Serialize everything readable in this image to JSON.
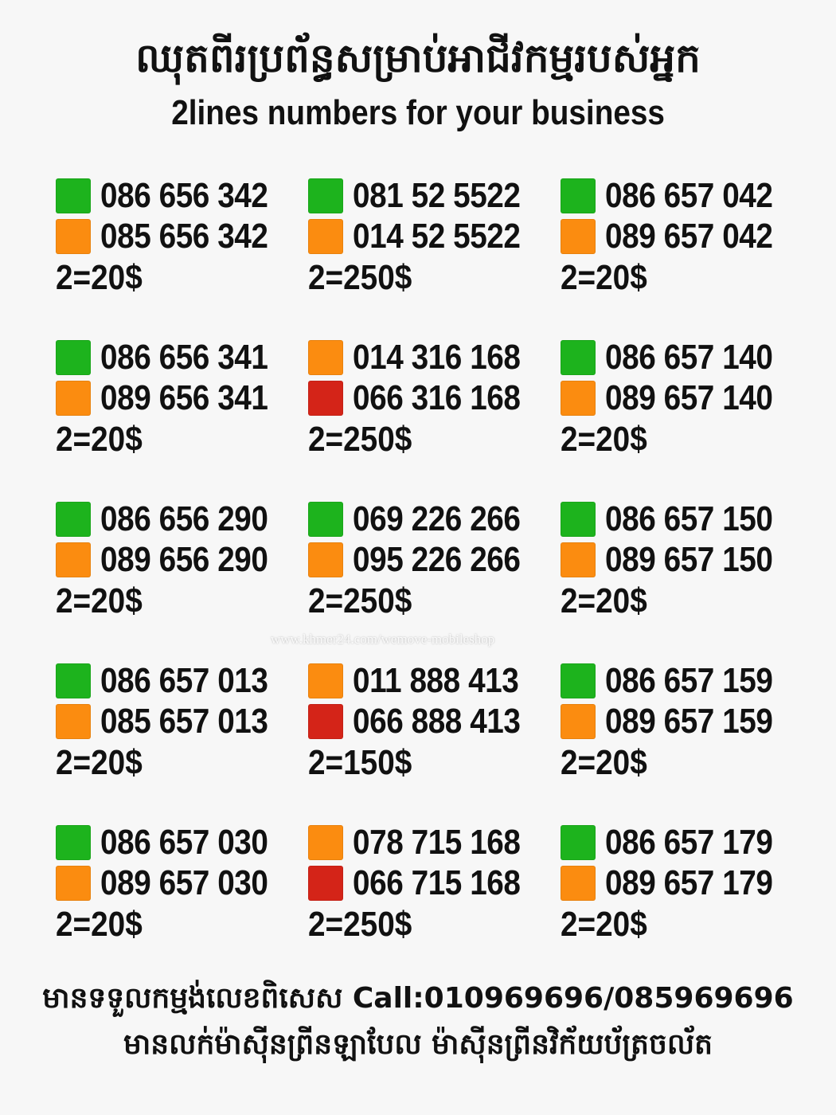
{
  "header": {
    "title_km": "ឈុតពីរប្រព័ន្ធសម្រាប់អាជីវកម្មរបស់អ្នក",
    "title_en": "2lines numbers for your business"
  },
  "colors": {
    "green": "#1db31d",
    "orange": "#fb8c10",
    "red": "#d42418"
  },
  "offers": [
    {
      "lines": [
        {
          "color": "green",
          "number": "086 656 342"
        },
        {
          "color": "orange",
          "number": "085 656 342"
        }
      ],
      "price": "2=20$"
    },
    {
      "lines": [
        {
          "color": "green",
          "number": "081 52 5522"
        },
        {
          "color": "orange",
          "number": "014 52 5522"
        }
      ],
      "price": "2=250$"
    },
    {
      "lines": [
        {
          "color": "green",
          "number": "086 657 042"
        },
        {
          "color": "orange",
          "number": "089 657 042"
        }
      ],
      "price": "2=20$"
    },
    {
      "lines": [
        {
          "color": "green",
          "number": "086 656 341"
        },
        {
          "color": "orange",
          "number": "089 656 341"
        }
      ],
      "price": "2=20$"
    },
    {
      "lines": [
        {
          "color": "orange",
          "number": "014 316 168"
        },
        {
          "color": "red",
          "number": "066 316 168"
        }
      ],
      "price": "2=250$"
    },
    {
      "lines": [
        {
          "color": "green",
          "number": "086 657 140"
        },
        {
          "color": "orange",
          "number": "089 657 140"
        }
      ],
      "price": "2=20$"
    },
    {
      "lines": [
        {
          "color": "green",
          "number": "086 656 290"
        },
        {
          "color": "orange",
          "number": "089 656 290"
        }
      ],
      "price": "2=20$"
    },
    {
      "lines": [
        {
          "color": "green",
          "number": "069 226 266"
        },
        {
          "color": "orange",
          "number": "095 226 266"
        }
      ],
      "price": "2=250$"
    },
    {
      "lines": [
        {
          "color": "green",
          "number": "086 657 150"
        },
        {
          "color": "orange",
          "number": "089 657 150"
        }
      ],
      "price": "2=20$"
    },
    {
      "lines": [
        {
          "color": "green",
          "number": "086 657 013"
        },
        {
          "color": "orange",
          "number": "085 657 013"
        }
      ],
      "price": "2=20$"
    },
    {
      "lines": [
        {
          "color": "orange",
          "number": "011 888 413"
        },
        {
          "color": "red",
          "number": "066 888 413"
        }
      ],
      "price": "2=150$"
    },
    {
      "lines": [
        {
          "color": "green",
          "number": "086 657 159"
        },
        {
          "color": "orange",
          "number": "089 657 159"
        }
      ],
      "price": "2=20$"
    },
    {
      "lines": [
        {
          "color": "green",
          "number": "086 657 030"
        },
        {
          "color": "orange",
          "number": "089 657 030"
        }
      ],
      "price": "2=20$"
    },
    {
      "lines": [
        {
          "color": "orange",
          "number": "078 715 168"
        },
        {
          "color": "red",
          "number": "066 715 168"
        }
      ],
      "price": "2=250$"
    },
    {
      "lines": [
        {
          "color": "green",
          "number": "086 657 179"
        },
        {
          "color": "orange",
          "number": "089 657 179"
        }
      ],
      "price": "2=20$"
    }
  ],
  "watermark": "www.khmer24.com/wemove-mobileshop",
  "footer": {
    "line1": "មានទទួលកម្មង់លេខពិសេស Call:010969696/085969696",
    "line2": "មានលក់ម៉ាស៊ីនព្រីនឡាបែល ម៉ាស៊ីនព្រីនវិក័យប័ត្រចល័ត"
  }
}
